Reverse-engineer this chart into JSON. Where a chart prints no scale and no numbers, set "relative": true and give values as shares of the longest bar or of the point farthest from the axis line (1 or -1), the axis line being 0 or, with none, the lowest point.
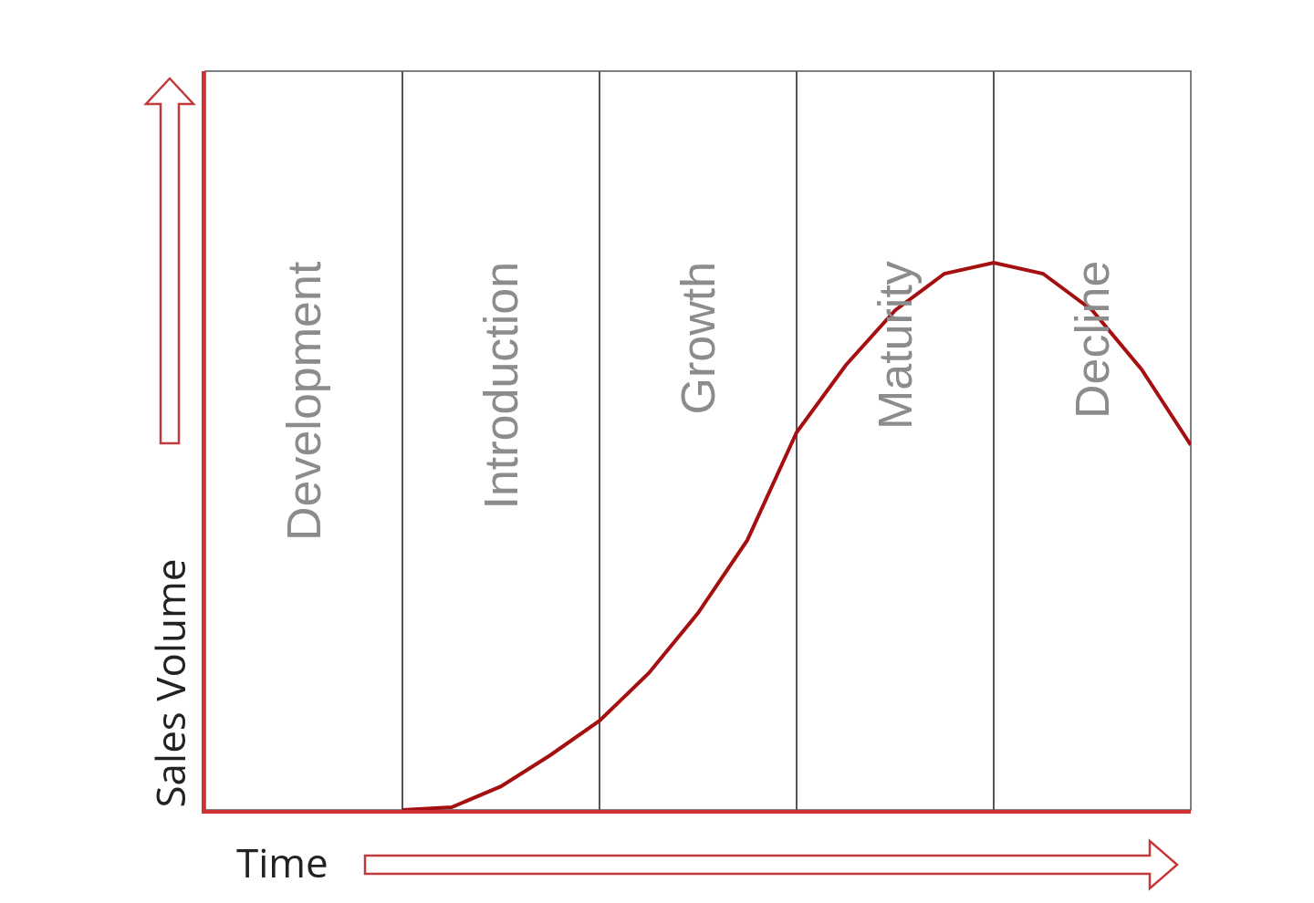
{
  "chart_data": {
    "type": "line",
    "xlabel": "Time",
    "ylabel": "Sales Volume",
    "relative": true,
    "grid": "x",
    "annotations": [
      "Development",
      "Introduction",
      "Growth",
      "Maturity",
      "Decline"
    ],
    "categories": [
      null,
      null,
      null,
      null,
      null,
      null,
      null,
      null,
      null,
      null,
      null,
      null,
      null,
      null,
      null,
      null,
      null,
      null,
      null,
      null,
      null
    ],
    "series": [
      {
        "color": "#a50f0f",
        "values": [
          null,
          null,
          null,
          null,
          0,
          0.005,
          0.043,
          0.1,
          0.163,
          0.25,
          0.36,
          0.493,
          0.69,
          0.813,
          0.913,
          0.98,
          1,
          0.98,
          0.913,
          0.805,
          0.667
        ]
      }
    ]
  }
}
